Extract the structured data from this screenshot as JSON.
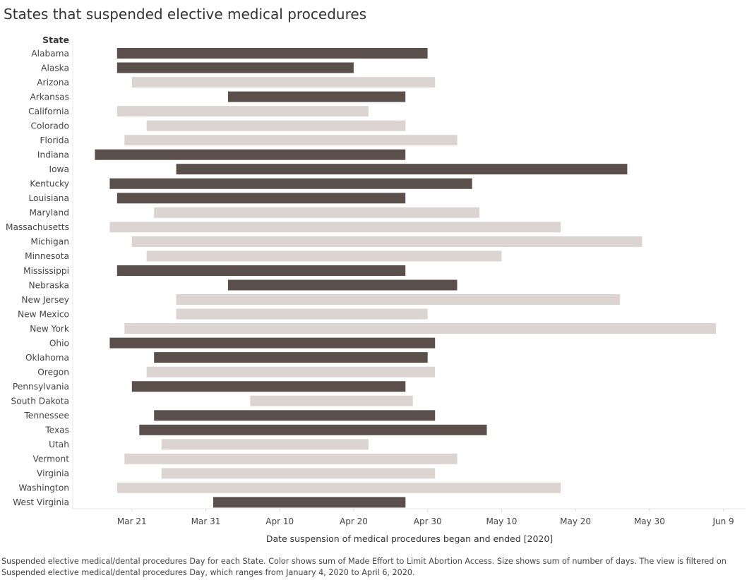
{
  "chart_data": {
    "type": "bar",
    "title": "States that suspended elective medical procedures",
    "row_header": "State",
    "xlabel": "Date suspension of medical procedures began and ended [2020]",
    "x_ticks": [
      "Mar 21",
      "Mar 31",
      "Apr 10",
      "Apr 20",
      "Apr 30",
      "May 10",
      "May 20",
      "May 30",
      "Jun 9"
    ],
    "x_tick_dates": [
      "2020-03-21",
      "2020-03-31",
      "2020-04-10",
      "2020-04-20",
      "2020-04-30",
      "2020-05-10",
      "2020-05-20",
      "2020-05-30",
      "2020-06-09"
    ],
    "xlim": [
      "2020-03-13",
      "2020-06-12"
    ],
    "colors": {
      "dark": "#5b4f4c",
      "light": "#dbd4d1"
    },
    "series": [
      {
        "state": "Alabama",
        "start": "2020-03-19",
        "end": "2020-04-30",
        "color": "dark"
      },
      {
        "state": "Alaska",
        "start": "2020-03-19",
        "end": "2020-04-20",
        "color": "dark"
      },
      {
        "state": "Arizona",
        "start": "2020-03-21",
        "end": "2020-05-01",
        "color": "light"
      },
      {
        "state": "Arkansas",
        "start": "2020-04-03",
        "end": "2020-04-27",
        "color": "dark"
      },
      {
        "state": "California",
        "start": "2020-03-19",
        "end": "2020-04-22",
        "color": "light"
      },
      {
        "state": "Colorado",
        "start": "2020-03-23",
        "end": "2020-04-27",
        "color": "light"
      },
      {
        "state": "Florida",
        "start": "2020-03-20",
        "end": "2020-05-04",
        "color": "light"
      },
      {
        "state": "Indiana",
        "start": "2020-03-16",
        "end": "2020-04-27",
        "color": "dark"
      },
      {
        "state": "Iowa",
        "start": "2020-03-27",
        "end": "2020-05-27",
        "color": "dark"
      },
      {
        "state": "Kentucky",
        "start": "2020-03-18",
        "end": "2020-05-06",
        "color": "dark"
      },
      {
        "state": "Louisiana",
        "start": "2020-03-19",
        "end": "2020-04-27",
        "color": "dark"
      },
      {
        "state": "Maryland",
        "start": "2020-03-24",
        "end": "2020-05-07",
        "color": "light"
      },
      {
        "state": "Massachusetts",
        "start": "2020-03-18",
        "end": "2020-05-18",
        "color": "light"
      },
      {
        "state": "Michigan",
        "start": "2020-03-21",
        "end": "2020-05-29",
        "color": "light"
      },
      {
        "state": "Minnesota",
        "start": "2020-03-23",
        "end": "2020-05-10",
        "color": "light"
      },
      {
        "state": "Mississippi",
        "start": "2020-03-19",
        "end": "2020-04-27",
        "color": "dark"
      },
      {
        "state": "Nebraska",
        "start": "2020-04-03",
        "end": "2020-05-04",
        "color": "dark"
      },
      {
        "state": "New Jersey",
        "start": "2020-03-27",
        "end": "2020-05-26",
        "color": "light"
      },
      {
        "state": "New Mexico",
        "start": "2020-03-27",
        "end": "2020-04-30",
        "color": "light"
      },
      {
        "state": "New York",
        "start": "2020-03-20",
        "end": "2020-06-08",
        "color": "light"
      },
      {
        "state": "Ohio",
        "start": "2020-03-18",
        "end": "2020-05-01",
        "color": "dark"
      },
      {
        "state": "Oklahoma",
        "start": "2020-03-24",
        "end": "2020-04-30",
        "color": "dark"
      },
      {
        "state": "Oregon",
        "start": "2020-03-23",
        "end": "2020-05-01",
        "color": "light"
      },
      {
        "state": "Pennsylvania",
        "start": "2020-03-21",
        "end": "2020-04-27",
        "color": "dark"
      },
      {
        "state": "South Dakota",
        "start": "2020-04-06",
        "end": "2020-04-28",
        "color": "light"
      },
      {
        "state": "Tennessee",
        "start": "2020-03-24",
        "end": "2020-05-01",
        "color": "dark"
      },
      {
        "state": "Texas",
        "start": "2020-03-22",
        "end": "2020-05-08",
        "color": "dark"
      },
      {
        "state": "Utah",
        "start": "2020-03-25",
        "end": "2020-04-22",
        "color": "light"
      },
      {
        "state": "Vermont",
        "start": "2020-03-20",
        "end": "2020-05-04",
        "color": "light"
      },
      {
        "state": "Virginia",
        "start": "2020-03-25",
        "end": "2020-05-01",
        "color": "light"
      },
      {
        "state": "Washington",
        "start": "2020-03-19",
        "end": "2020-05-18",
        "color": "light"
      },
      {
        "state": "West Virginia",
        "start": "2020-04-01",
        "end": "2020-04-27",
        "color": "dark"
      }
    ],
    "footnote": "Suspended elective medical/dental procedures Day for each State.  Color shows sum of Made Effort to Limit Abortion Access.  Size shows sum of number of days. The view is filtered on Suspended elective medical/dental procedures Day, which ranges from January 4, 2020 to April 6, 2020."
  }
}
